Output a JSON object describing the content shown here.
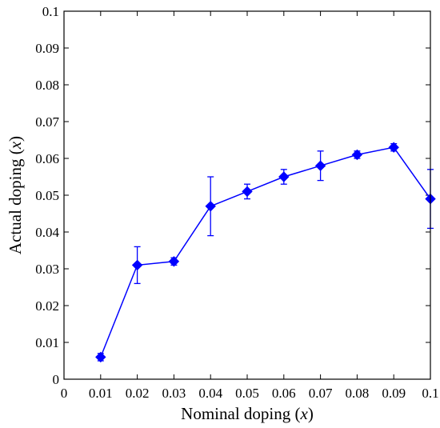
{
  "chart_data": {
    "type": "line",
    "title": "",
    "xlabel": "Nominal doping",
    "xlabel_var": "x",
    "ylabel": "Actual doping",
    "ylabel_var": "x",
    "xlim": [
      0,
      0.1
    ],
    "ylim": [
      0,
      0.1
    ],
    "xticks": [
      "0",
      "0.01",
      "0.02",
      "0.03",
      "0.04",
      "0.05",
      "0.06",
      "0.07",
      "0.08",
      "0.09",
      "0.1"
    ],
    "yticks": [
      "0",
      "0.01",
      "0.02",
      "0.03",
      "0.04",
      "0.05",
      "0.06",
      "0.07",
      "0.08",
      "0.09",
      "0.1"
    ],
    "grid": false,
    "legend": "none",
    "marker": "diamond",
    "color": "#0000ff",
    "series": [
      {
        "x": [
          0.01,
          0.02,
          0.03,
          0.04,
          0.05,
          0.06,
          0.07,
          0.08,
          0.09,
          0.1
        ],
        "y": [
          0.006,
          0.031,
          0.032,
          0.047,
          0.051,
          0.055,
          0.058,
          0.061,
          0.063,
          0.049
        ],
        "error": [
          0.001,
          0.005,
          0.001,
          0.008,
          0.002,
          0.002,
          0.004,
          0.001,
          0.001,
          0.008
        ]
      }
    ]
  }
}
